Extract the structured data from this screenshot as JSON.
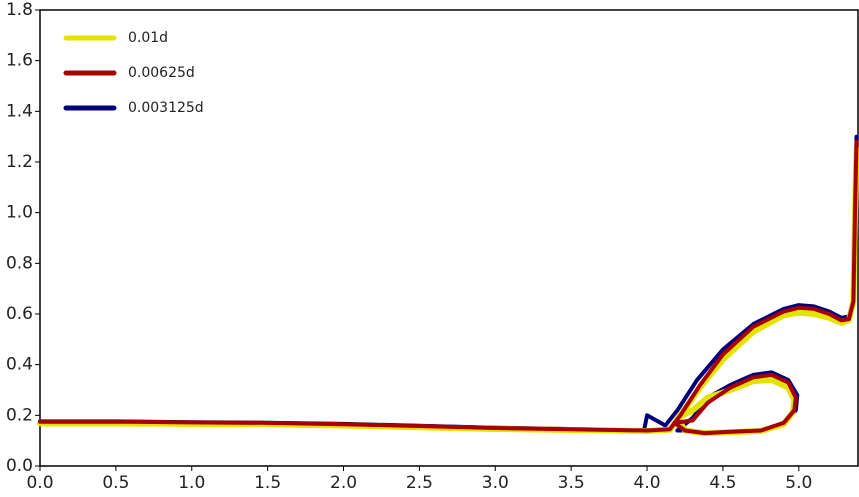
{
  "chart_data": {
    "type": "line",
    "xlim": [
      0,
      5.39
    ],
    "ylim": [
      0,
      1.8
    ],
    "xticks": [
      {
        "value": 0,
        "label": "0.0"
      },
      {
        "value": 0.5,
        "label": "0.5"
      },
      {
        "value": 1,
        "label": "1.0"
      },
      {
        "value": 1.5,
        "label": "1.5"
      },
      {
        "value": 2,
        "label": "2.0"
      },
      {
        "value": 2.5,
        "label": "2.5"
      },
      {
        "value": 3,
        "label": "3.0"
      },
      {
        "value": 3.5,
        "label": "3.5"
      },
      {
        "value": 4,
        "label": "4.0"
      },
      {
        "value": 4.5,
        "label": "4.5"
      },
      {
        "value": 5,
        "label": "5.0"
      }
    ],
    "yticks": [
      {
        "value": 0,
        "label": "0.0"
      },
      {
        "value": 0.2,
        "label": "0.2"
      },
      {
        "value": 0.4,
        "label": "0.4"
      },
      {
        "value": 0.6,
        "label": "0.6"
      },
      {
        "value": 0.8,
        "label": "0.8"
      },
      {
        "value": 1,
        "label": "1.0"
      },
      {
        "value": 1.2,
        "label": "1.2"
      },
      {
        "value": 1.4,
        "label": "1.4"
      },
      {
        "value": 1.6,
        "label": "1.6"
      },
      {
        "value": 1.8,
        "label": "1.8"
      }
    ],
    "legend": "upper left",
    "series": [
      {
        "name": "0.01d",
        "color": "#e3e300",
        "width": 6,
        "x": [
          0,
          0.5,
          1,
          1.5,
          2,
          2.5,
          3,
          3.5,
          4,
          4.15,
          4.22,
          4.35,
          4.5,
          4.7,
          4.9,
          5.0,
          5.1,
          5.2,
          5.28,
          5.33,
          5.36,
          5.37,
          5.38,
          null,
          4.2,
          4.3,
          4.4,
          4.55,
          4.7,
          4.82,
          4.93,
          4.97,
          4.96,
          4.9,
          4.75,
          4.55,
          4.38,
          4.25,
          4.2
        ],
        "values": [
          0.168,
          0.168,
          0.166,
          0.165,
          0.16,
          0.153,
          0.146,
          0.142,
          0.138,
          0.143,
          0.2,
          0.31,
          0.42,
          0.53,
          0.595,
          0.605,
          0.6,
          0.585,
          0.565,
          0.575,
          0.65,
          1.0,
          1.25,
          null,
          0.19,
          0.22,
          0.27,
          0.3,
          0.335,
          0.34,
          0.31,
          0.26,
          0.21,
          0.165,
          0.138,
          0.133,
          0.13,
          0.14,
          0.19
        ]
      },
      {
        "name": "0.00625d",
        "color": "#a80000",
        "width": 4,
        "x": [
          0,
          0.5,
          1,
          1.5,
          2,
          2.5,
          3,
          3.5,
          4,
          4.15,
          4.22,
          4.35,
          4.5,
          4.7,
          4.9,
          5.0,
          5.1,
          5.2,
          5.28,
          5.33,
          5.36,
          5.37,
          5.38,
          null,
          4.18,
          4.3,
          4.4,
          4.55,
          4.7,
          4.82,
          4.93,
          4.98,
          4.97,
          4.9,
          4.75,
          4.55,
          4.38,
          4.25,
          4.18
        ],
        "values": [
          0.175,
          0.175,
          0.172,
          0.17,
          0.165,
          0.158,
          0.15,
          0.145,
          0.14,
          0.145,
          0.2,
          0.32,
          0.44,
          0.55,
          0.61,
          0.625,
          0.62,
          0.6,
          0.575,
          0.58,
          0.65,
          1.0,
          1.28,
          null,
          0.17,
          0.18,
          0.25,
          0.31,
          0.35,
          0.36,
          0.33,
          0.27,
          0.22,
          0.17,
          0.14,
          0.135,
          0.13,
          0.14,
          0.17
        ]
      },
      {
        "name": "0.003125d",
        "color": "#00007f",
        "width": 4,
        "x": [
          0,
          0.5,
          1,
          1.5,
          2,
          2.5,
          3,
          3.5,
          3.98,
          4.0,
          4.12,
          4.2,
          4.33,
          4.5,
          4.7,
          4.9,
          5.0,
          5.1,
          5.2,
          5.28,
          5.33,
          5.36,
          5.37,
          5.38,
          null,
          4.2,
          4.3,
          4.4,
          4.55,
          4.7,
          4.82,
          4.93,
          4.99,
          4.98,
          4.9,
          4.75,
          4.55,
          4.38,
          4.25,
          4.2
        ],
        "values": [
          0.176,
          0.176,
          0.173,
          0.171,
          0.166,
          0.159,
          0.151,
          0.146,
          0.14,
          0.2,
          0.16,
          0.22,
          0.34,
          0.46,
          0.56,
          0.62,
          0.635,
          0.63,
          0.61,
          0.585,
          0.59,
          0.66,
          1.0,
          1.3,
          null,
          0.14,
          0.19,
          0.27,
          0.32,
          0.36,
          0.37,
          0.34,
          0.28,
          0.22,
          0.17,
          0.138,
          0.133,
          0.128,
          0.14,
          0.14
        ]
      }
    ]
  }
}
